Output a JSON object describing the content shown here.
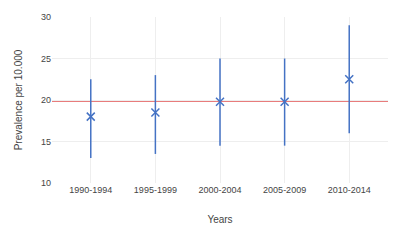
{
  "chart_data": {
    "type": "scatter",
    "xlabel": "Years",
    "ylabel": "Prevalence per 10.000",
    "categories": [
      "1990-1994",
      "1995-1999",
      "2000-2004",
      "2005-2009",
      "2010-2014"
    ],
    "values": [
      18.0,
      18.5,
      19.8,
      19.8,
      22.5
    ],
    "ci_lower": [
      13.0,
      13.5,
      14.5,
      14.5,
      16.0
    ],
    "ci_upper": [
      22.5,
      23.0,
      25.0,
      25.0,
      29.0
    ],
    "color": "#4472C4",
    "marker": "x",
    "reference_line": {
      "value": 19.9,
      "color": "#E05050"
    },
    "ylim": [
      10,
      30
    ],
    "yticks": [
      10,
      15,
      20,
      25,
      30
    ],
    "grid": true
  }
}
